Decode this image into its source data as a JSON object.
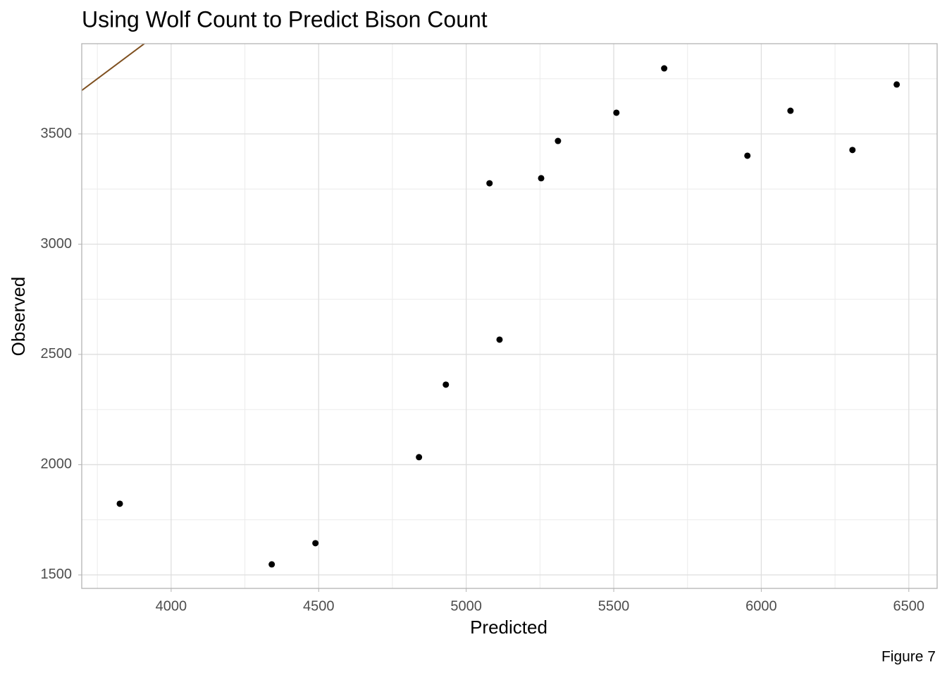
{
  "chart_data": {
    "type": "scatter",
    "title": "Using Wolf Count to Predict Bison Count",
    "x_label": "Predicted",
    "y_label": "Observed",
    "caption": "Figure 7",
    "x": [
      3826,
      4341,
      4489,
      4840,
      4931,
      5079,
      5113,
      5254,
      5311,
      5509,
      5671,
      5953,
      6099,
      6309,
      6459
    ],
    "values": [
      1823,
      1548,
      1644,
      2034,
      2363,
      3276,
      2567,
      3299,
      3468,
      3596,
      3797,
      3401,
      3605,
      3427,
      3724
    ],
    "color": "#000000",
    "reference_line": {
      "slope": 1,
      "intercept": 0,
      "color": "#7f5020"
    },
    "xlim": [
      3697,
      6596
    ],
    "xticks": [
      4000,
      4500,
      5000,
      5500,
      6000,
      6500
    ],
    "ylim": [
      1439,
      3909
    ],
    "yticks": [
      1500,
      2000,
      2500,
      3000,
      3500
    ],
    "grid": true
  }
}
